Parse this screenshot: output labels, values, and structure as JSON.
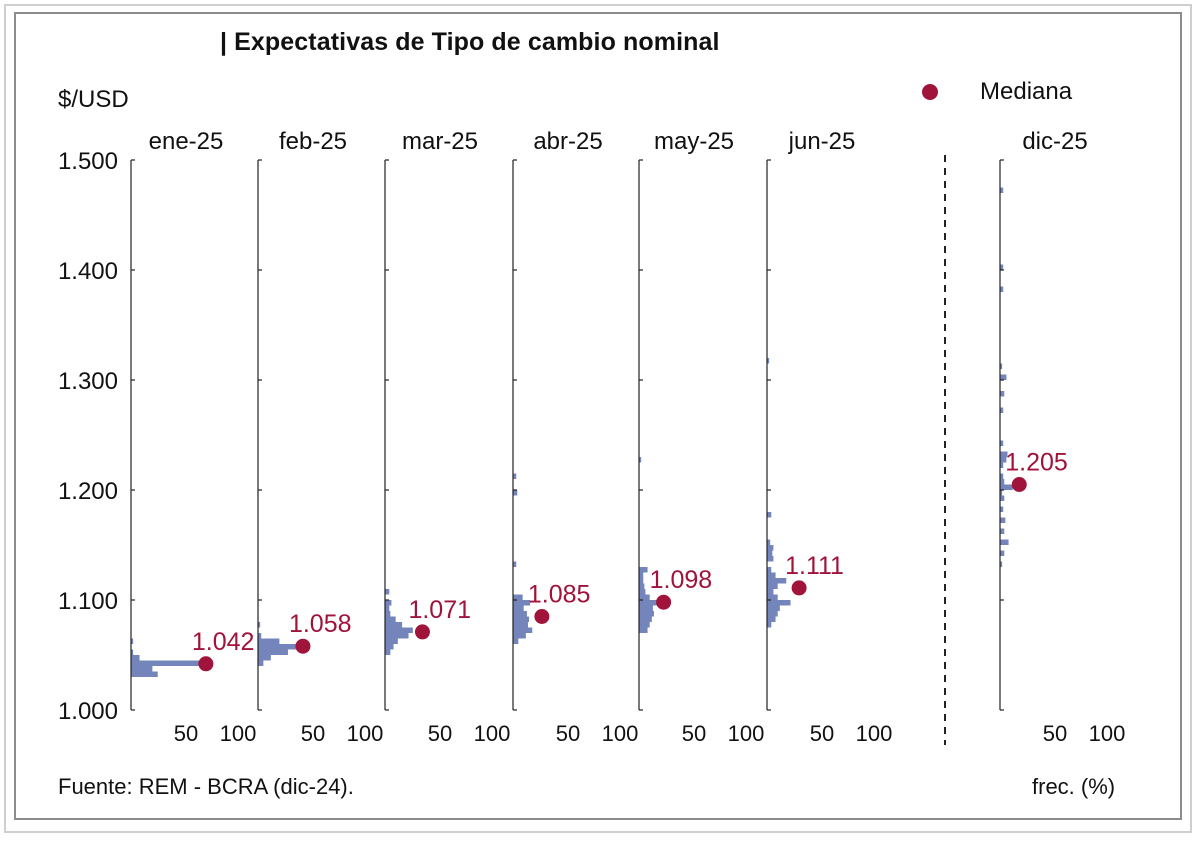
{
  "title": "| Expectativas de Tipo de cambio nominal",
  "ylabel": "$/USD",
  "legend": {
    "label": "Mediana",
    "color": "#a0133a"
  },
  "source": "Fuente: REM - BCRA (dic-24).",
  "xunit": "frec. (%)",
  "colors": {
    "bars": "#7485bb",
    "median": "#a0133a",
    "text": "#111111"
  },
  "chart_data": {
    "type": "bar",
    "orientation": "horizontal-histogram-panels",
    "ylim": [
      1000,
      1500
    ],
    "yticks": [
      1000,
      1100,
      1200,
      1300,
      1400,
      1500
    ],
    "ytick_labels": [
      "1.000",
      "1.100",
      "1.200",
      "1.300",
      "1.400",
      "1.500"
    ],
    "xlim": [
      0,
      100
    ],
    "xtick_labels": [
      "50",
      "100"
    ],
    "bin_width": 5,
    "panels": [
      {
        "name": "ene-25",
        "median": 1042,
        "median_label": "1.042",
        "median_x": 70,
        "bins": [
          [
            1030,
            25
          ],
          [
            1035,
            20
          ],
          [
            1040,
            68
          ],
          [
            1045,
            8
          ],
          [
            1050,
            2
          ],
          [
            1060,
            2
          ]
        ]
      },
      {
        "name": "feb-25",
        "median": 1058,
        "median_label": "1.058",
        "median_x": 42,
        "bins": [
          [
            1040,
            5
          ],
          [
            1045,
            12
          ],
          [
            1050,
            28
          ],
          [
            1055,
            38
          ],
          [
            1060,
            20
          ],
          [
            1065,
            3
          ],
          [
            1075,
            2
          ]
        ]
      },
      {
        "name": "mar-25",
        "median": 1071,
        "median_label": "1.071",
        "median_x": 35,
        "bins": [
          [
            1050,
            5
          ],
          [
            1055,
            8
          ],
          [
            1060,
            12
          ],
          [
            1065,
            22
          ],
          [
            1070,
            26
          ],
          [
            1075,
            16
          ],
          [
            1080,
            10
          ],
          [
            1085,
            5
          ],
          [
            1090,
            4
          ],
          [
            1095,
            6
          ],
          [
            1105,
            4
          ]
        ]
      },
      {
        "name": "abr-25",
        "median": 1085,
        "median_label": "1.085",
        "median_x": 27,
        "bins": [
          [
            1060,
            5
          ],
          [
            1065,
            12
          ],
          [
            1070,
            18
          ],
          [
            1075,
            14
          ],
          [
            1080,
            15
          ],
          [
            1085,
            13
          ],
          [
            1090,
            10
          ],
          [
            1095,
            16
          ],
          [
            1100,
            9
          ],
          [
            1130,
            3
          ],
          [
            1195,
            4
          ],
          [
            1210,
            3
          ]
        ]
      },
      {
        "name": "may-25",
        "median": 1098,
        "median_label": "1.098",
        "median_x": 23,
        "bins": [
          [
            1070,
            8
          ],
          [
            1075,
            10
          ],
          [
            1080,
            12
          ],
          [
            1085,
            14
          ],
          [
            1090,
            13
          ],
          [
            1095,
            20
          ],
          [
            1100,
            10
          ],
          [
            1105,
            6
          ],
          [
            1110,
            5
          ],
          [
            1115,
            4
          ],
          [
            1120,
            4
          ],
          [
            1125,
            8
          ],
          [
            1225,
            2
          ]
        ]
      },
      {
        "name": "jun-25",
        "median": 1111,
        "median_label": "1.111",
        "median_x": 30,
        "bins": [
          [
            1075,
            4
          ],
          [
            1080,
            8
          ],
          [
            1085,
            10
          ],
          [
            1090,
            12
          ],
          [
            1095,
            22
          ],
          [
            1100,
            10
          ],
          [
            1105,
            6
          ],
          [
            1110,
            10
          ],
          [
            1115,
            18
          ],
          [
            1120,
            8
          ],
          [
            1125,
            4
          ],
          [
            1135,
            6
          ],
          [
            1140,
            5
          ],
          [
            1145,
            6
          ],
          [
            1150,
            3
          ],
          [
            1175,
            4
          ],
          [
            1315,
            2
          ]
        ]
      },
      {
        "name": "dic-25",
        "median": 1205,
        "median_label": "1.205",
        "median_x": 18,
        "bins": [
          [
            1130,
            2
          ],
          [
            1140,
            4
          ],
          [
            1150,
            8
          ],
          [
            1160,
            4
          ],
          [
            1170,
            5
          ],
          [
            1180,
            3
          ],
          [
            1190,
            4
          ],
          [
            1195,
            2
          ],
          [
            1200,
            12
          ],
          [
            1205,
            4
          ],
          [
            1210,
            3
          ],
          [
            1220,
            3
          ],
          [
            1225,
            6
          ],
          [
            1230,
            7
          ],
          [
            1240,
            3
          ],
          [
            1270,
            3
          ],
          [
            1285,
            4
          ],
          [
            1300,
            6
          ],
          [
            1310,
            2
          ],
          [
            1380,
            3
          ],
          [
            1400,
            3
          ],
          [
            1470,
            3
          ]
        ]
      }
    ]
  }
}
